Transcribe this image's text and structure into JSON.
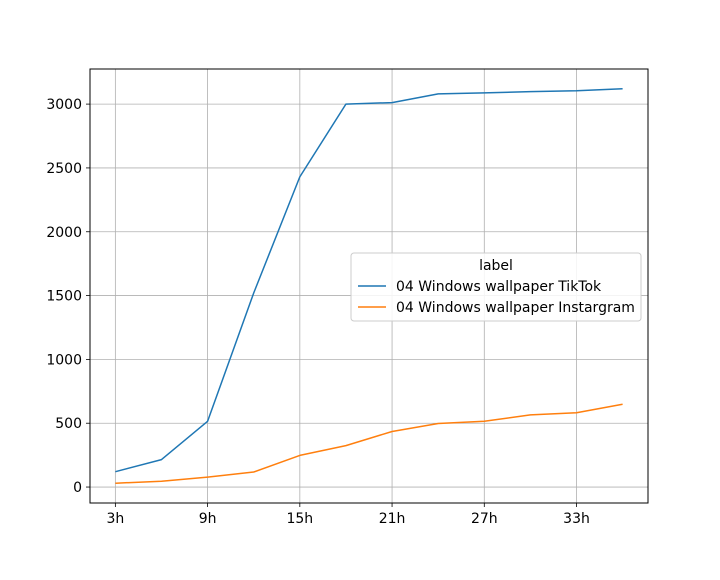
{
  "chart_data": {
    "type": "line",
    "x": [
      3,
      6,
      9,
      12,
      15,
      18,
      21,
      24,
      27,
      30,
      33,
      36
    ],
    "xticks": [
      3,
      9,
      15,
      21,
      27,
      33
    ],
    "xtick_labels": [
      "3h",
      "9h",
      "15h",
      "21h",
      "27h",
      "33h"
    ],
    "xlim": [
      1.35,
      37.65
    ],
    "yticks": [
      0,
      500,
      1000,
      1500,
      2000,
      2500,
      3000
    ],
    "ytick_labels": [
      "0",
      "500",
      "1000",
      "1500",
      "2000",
      "2500",
      "3000"
    ],
    "ylim": [
      -125,
      3275
    ],
    "grid": true,
    "title": "",
    "xlabel": "",
    "ylabel": "",
    "legend": {
      "title": "label",
      "placement": "center-right"
    },
    "series": [
      {
        "name": "04 Windows wallpaper TikTok",
        "color": "#1f77b4",
        "values": [
          120,
          215,
          515,
          1520,
          2430,
          3000,
          3012,
          3080,
          3088,
          3098,
          3104,
          3120
        ]
      },
      {
        "name": "04 Windows wallpaper Instargram",
        "color": "#ff7f0e",
        "values": [
          30,
          45,
          78,
          118,
          248,
          325,
          435,
          498,
          515,
          565,
          582,
          648
        ]
      }
    ]
  }
}
